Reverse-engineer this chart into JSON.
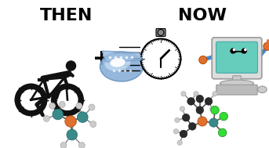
{
  "title_left": "THEN",
  "title_right": "NOW",
  "title_fontsize": 16,
  "title_fontweight": "bold",
  "bg_color": "#ffffff",
  "cyclist_color": "#111111",
  "molecule1_colors": {
    "teal": "#3a8a8a",
    "orange": "#e07030",
    "white_ball": "#cccccc"
  },
  "molecule2_colors": {
    "dark": "#2a2a2a",
    "orange": "#e07030",
    "green": "#33dd33",
    "teal": "#3a8a8a",
    "white_ball": "#cccccc"
  },
  "tape_color1": "#7799cc",
  "tape_color2": "#aabbdd",
  "computer_screen": "#66ccbb",
  "computer_body": "#cccccc",
  "computer_arm": "#e07030"
}
